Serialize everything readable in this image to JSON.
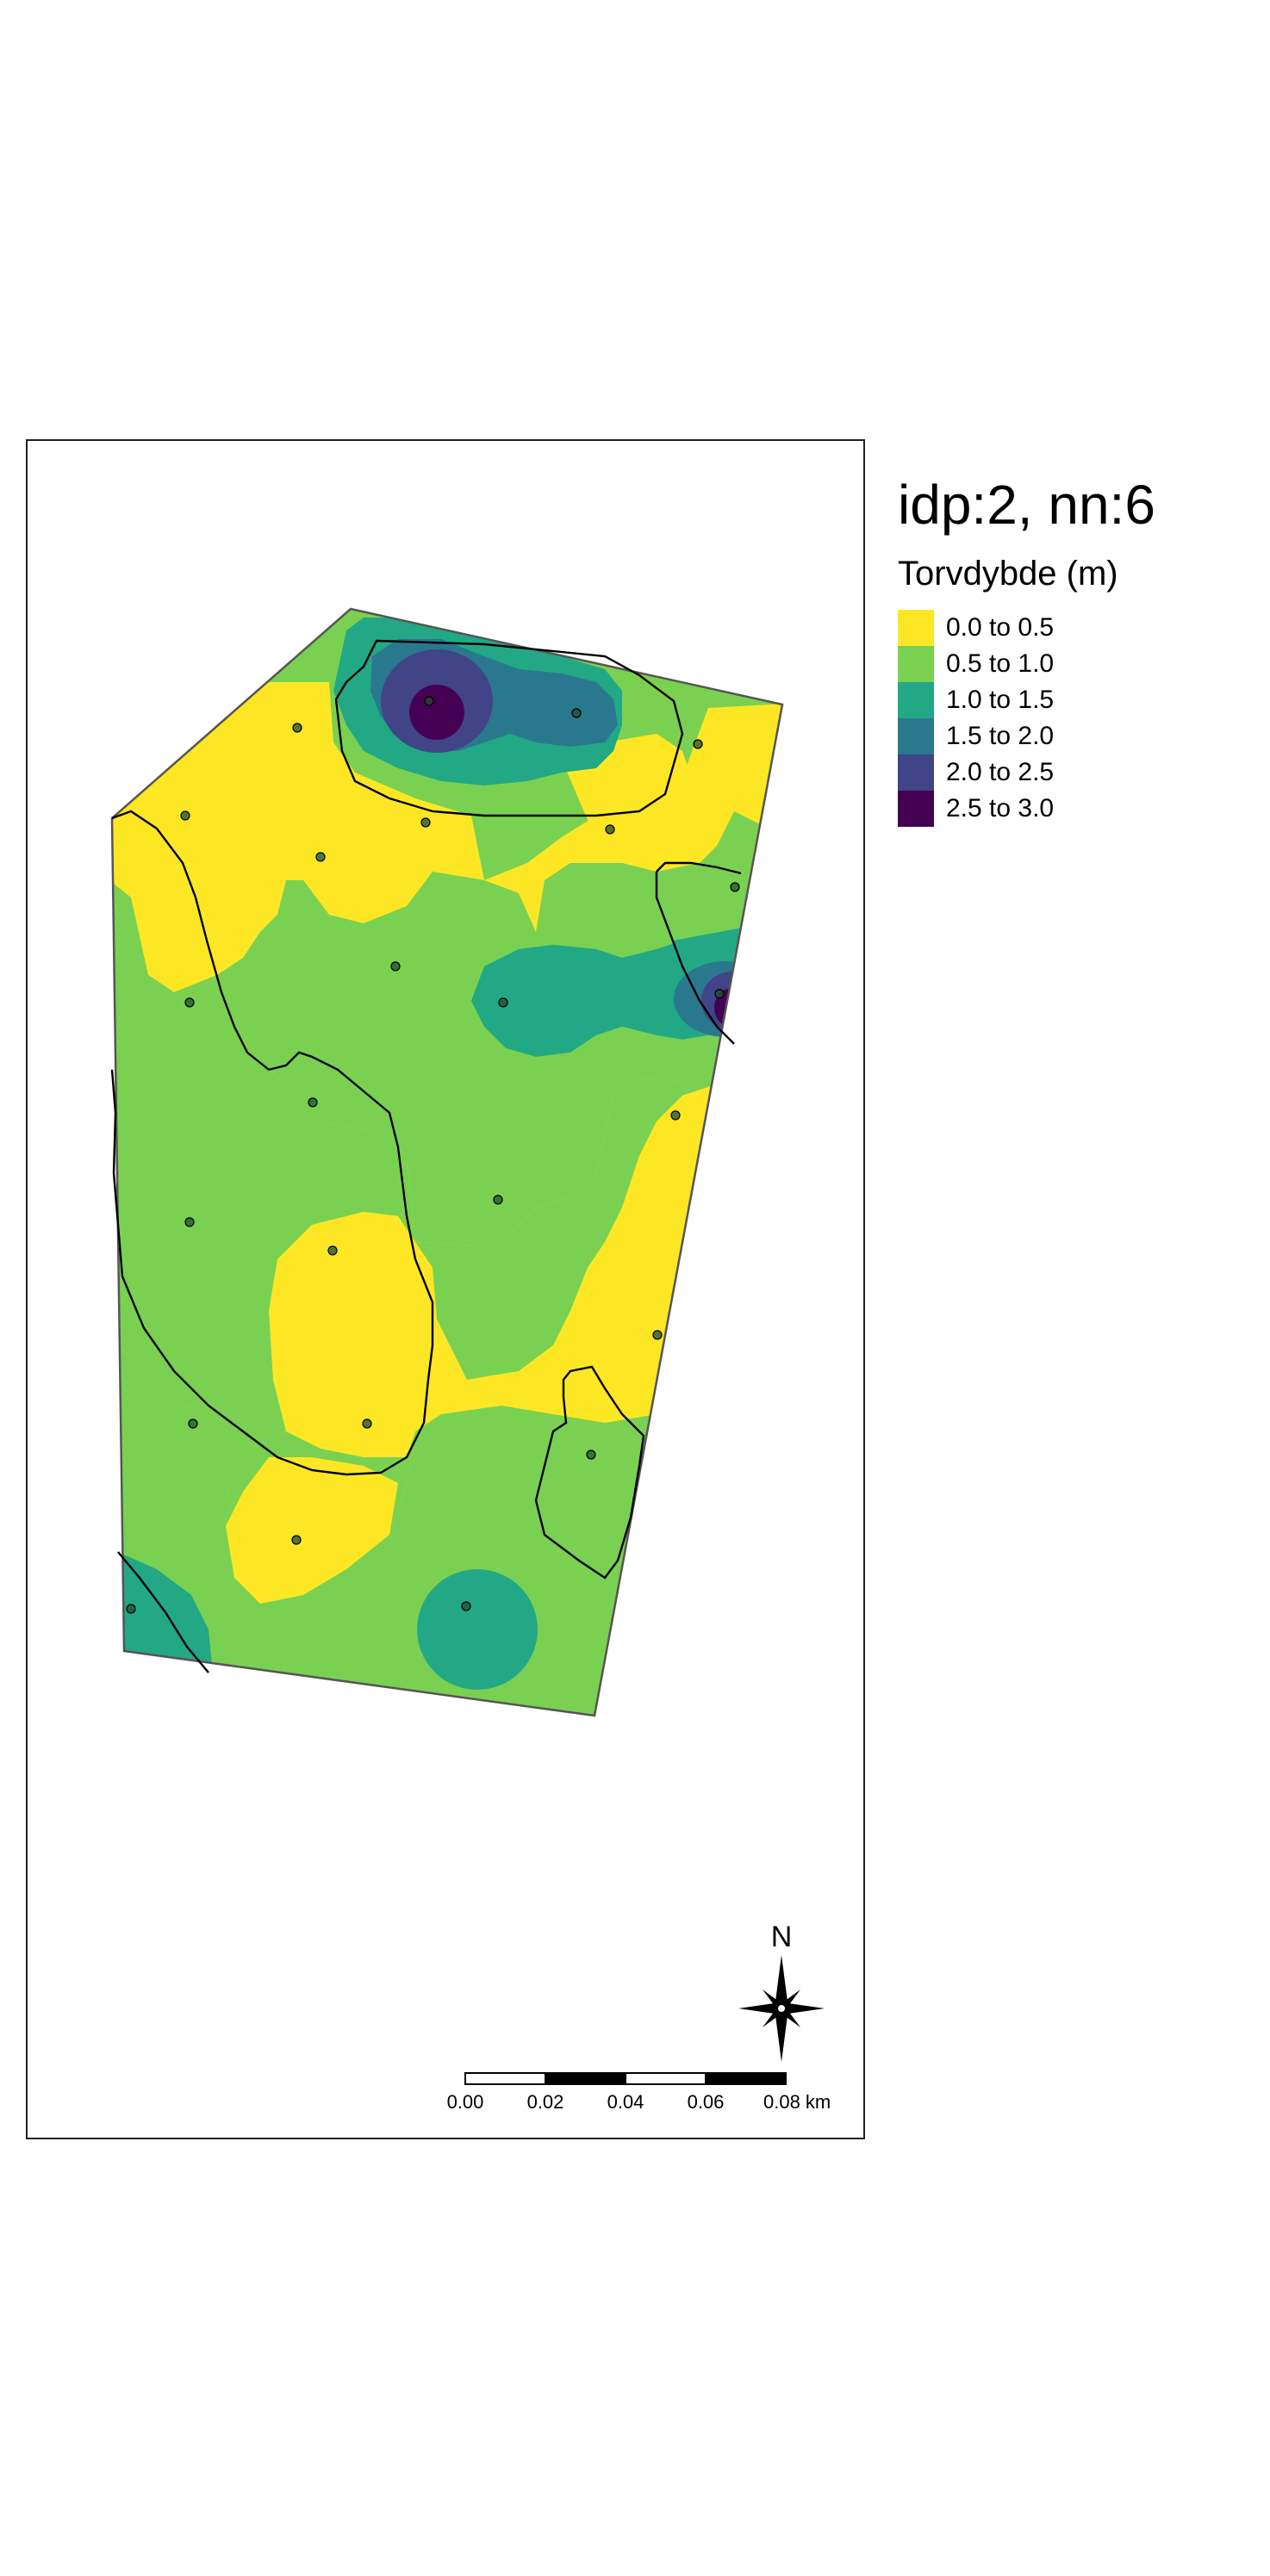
{
  "map": {
    "title": "idp:2, nn:6",
    "legend": {
      "title": "Torvdybde (m)",
      "items": [
        {
          "label": "0.0 to 0.5",
          "color": "#fde725"
        },
        {
          "label": "0.5 to 1.0",
          "color": "#7ad151"
        },
        {
          "label": "1.0 to 1.5",
          "color": "#22a884"
        },
        {
          "label": "1.5 to 2.0",
          "color": "#2a788e"
        },
        {
          "label": "2.0 to 2.5",
          "color": "#414487"
        },
        {
          "label": "2.5 to 3.0",
          "color": "#440154"
        }
      ]
    },
    "scale_bar": {
      "ticks": [
        "0.00",
        "0.02",
        "0.04",
        "0.06",
        "0.08 km"
      ]
    },
    "north_arrow": {
      "label": "N"
    },
    "colors": {
      "frame": "#222222",
      "boundary": "#000000",
      "outline": "#555555",
      "sample_point": "#1f4d2f"
    }
  }
}
